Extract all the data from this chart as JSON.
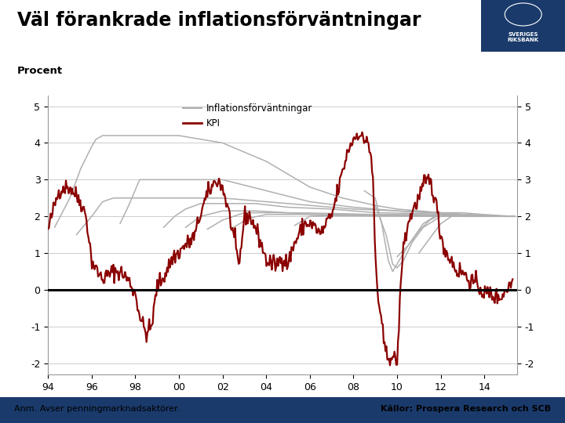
{
  "title": "Väl förankrade inflationsförväntningar",
  "subtitle": "Procent",
  "footnote_left": "Anm. Avser penningmarknadsaktörer.",
  "footnote_right": "Källor: Prospera Research och SCB",
  "legend_inflation": "Inflationsförväntningar",
  "legend_kpi": "KPI",
  "xlim": [
    1994,
    2015.5
  ],
  "ylim": [
    -2.3,
    5.3
  ],
  "xtick_vals": [
    1994,
    1996,
    1998,
    2000,
    2002,
    2004,
    2006,
    2008,
    2010,
    2012,
    2014
  ],
  "xtick_labels": [
    "94",
    "96",
    "98",
    "00",
    "02",
    "04",
    "06",
    "08",
    "10",
    "12",
    "14"
  ],
  "yticks": [
    -2,
    -1,
    0,
    1,
    2,
    3,
    4,
    5
  ],
  "background_color": "#ffffff",
  "plot_bg": "#ffffff",
  "grid_color": "#cccccc",
  "kpi_color": "#8b0000",
  "inflation_color": "#b0b0b0",
  "zero_line_color": "#000000",
  "footer_bar_color": "#1a3a6b",
  "logo_color": "#1a3a6b"
}
